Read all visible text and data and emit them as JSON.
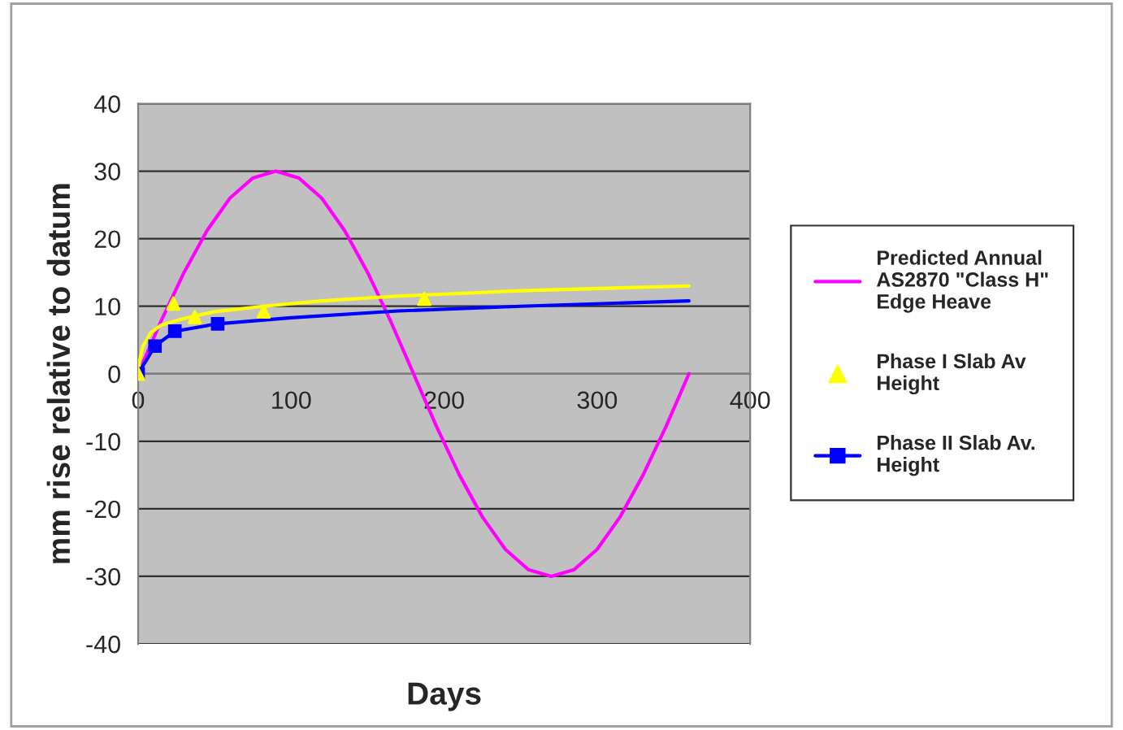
{
  "chart_data": {
    "type": "line",
    "xlabel": "Days",
    "ylabel": "mm rise relative to datum",
    "xlim": [
      0,
      400
    ],
    "xticks": [
      0,
      100,
      200,
      300,
      400
    ],
    "ylim": [
      -40,
      40
    ],
    "yticks": [
      -40,
      -30,
      -20,
      -10,
      0,
      10,
      20,
      30,
      40
    ],
    "grid": "y",
    "legend": "right",
    "series": [
      {
        "name": "Predicted Annual AS2870 \"Class H\" Edge Heave",
        "color": "#ff00ff",
        "marker": "none",
        "x": [
          0,
          15,
          30,
          45,
          60,
          75,
          90,
          105,
          120,
          135,
          150,
          165,
          180,
          195,
          210,
          225,
          240,
          255,
          270,
          285,
          300,
          315,
          330,
          345,
          360
        ],
        "values": [
          0,
          7.8,
          15,
          21.2,
          26,
          29,
          30,
          29,
          26,
          21.2,
          15,
          7.8,
          0,
          -7.8,
          -15,
          -21.2,
          -26,
          -29,
          -30,
          -29,
          -26,
          -21.2,
          -15,
          -7.8,
          0
        ]
      },
      {
        "name": "Phase I Slab Av Height",
        "type": "scatter",
        "color": "#ffff00",
        "marker": "triangle",
        "x": [
          0,
          23,
          37,
          82,
          187
        ],
        "values": [
          0,
          10.4,
          8.4,
          9.2,
          11.1
        ]
      },
      {
        "type": "line",
        "color": "#ffff00",
        "marker": "none",
        "x": [
          0,
          1,
          3,
          8,
          15,
          30,
          50,
          82,
          120,
          170,
          250,
          360
        ],
        "values": [
          0,
          2,
          4,
          6,
          7.2,
          8.2,
          9.2,
          10,
          10.8,
          11.5,
          12.3,
          13
        ]
      },
      {
        "name": "Phase II Slab Av. Height",
        "type": "line",
        "color": "#0000ff",
        "marker": "square",
        "x": [
          0,
          11,
          24,
          52
        ],
        "values": [
          0,
          4.1,
          6.3,
          7.4
        ]
      },
      {
        "type": "line",
        "color": "#0000ff",
        "marker": "none",
        "x": [
          52,
          100,
          170,
          250,
          360
        ],
        "values": [
          7.4,
          8.3,
          9.3,
          10,
          10.8
        ]
      }
    ]
  }
}
